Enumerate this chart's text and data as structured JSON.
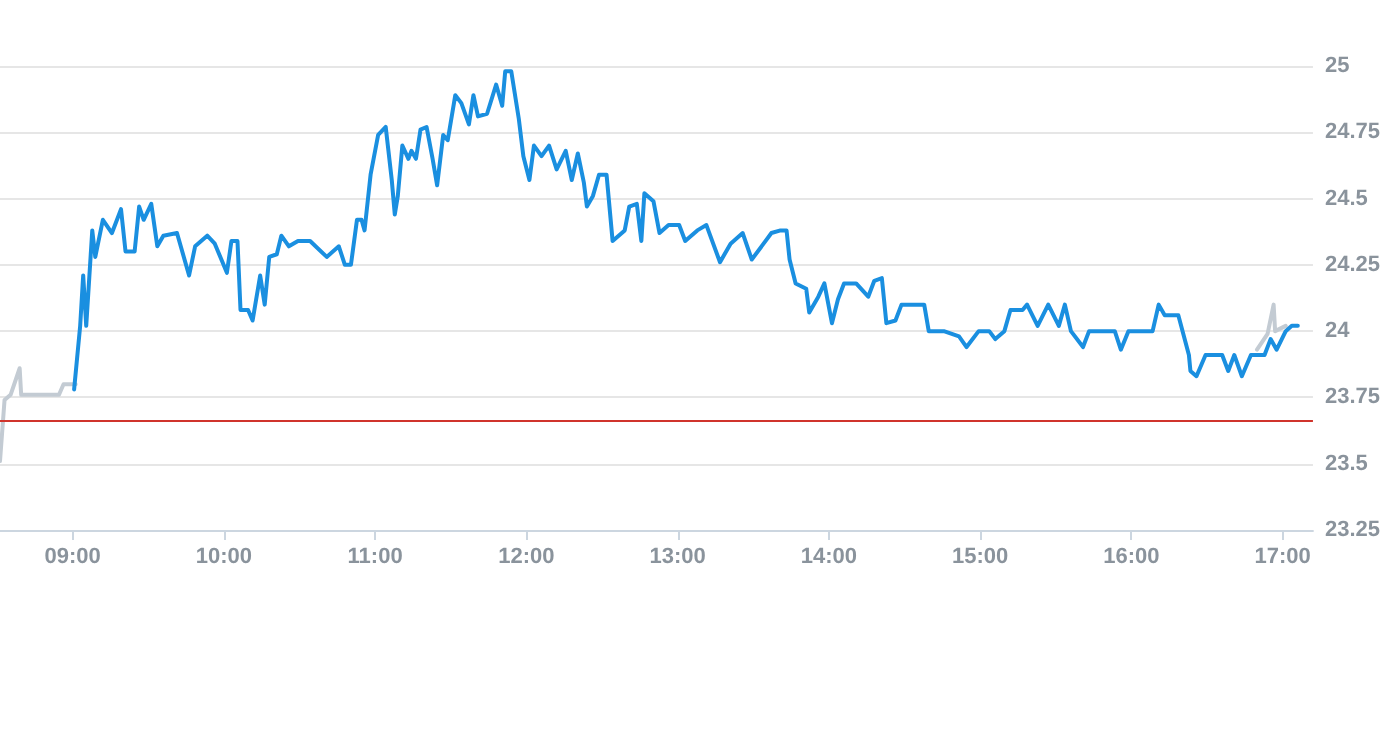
{
  "chart_data": {
    "type": "line",
    "xlim": [
      8.52,
      17.2
    ],
    "ylim": [
      23.25,
      25
    ],
    "xticks": [
      {
        "value": 9,
        "label": "09:00"
      },
      {
        "value": 10,
        "label": "10:00"
      },
      {
        "value": 11,
        "label": "11:00"
      },
      {
        "value": 12,
        "label": "12:00"
      },
      {
        "value": 13,
        "label": "13:00"
      },
      {
        "value": 14,
        "label": "14:00"
      },
      {
        "value": 15,
        "label": "15:00"
      },
      {
        "value": 16,
        "label": "16:00"
      },
      {
        "value": 17,
        "label": "17:00"
      }
    ],
    "yticks": [
      23.25,
      23.5,
      23.75,
      24,
      24.25,
      24.5,
      24.75,
      25
    ],
    "grid": "y",
    "marker": "none",
    "line_style": "solid",
    "ref_lines": [
      {
        "axis": "y",
        "value": 23.66,
        "color": "#d0342c"
      }
    ],
    "series": [
      {
        "color": "#c3cbd3",
        "x": [
          8.52,
          8.55,
          8.59,
          8.65,
          8.66,
          8.91,
          8.94,
          8.99,
          9.02
        ],
        "values": [
          23.51,
          23.74,
          23.76,
          23.86,
          23.76,
          23.76,
          23.8,
          23.8,
          23.8
        ]
      },
      {
        "color": "#c3cbd3",
        "x": [
          16.83,
          16.9,
          16.94,
          16.95,
          17.02
        ],
        "values": [
          23.93,
          23.99,
          24.1,
          24.0,
          24.02
        ]
      },
      {
        "color": "#1a8fe0",
        "x": [
          9.01,
          9.05,
          9.07,
          9.09,
          9.13,
          9.15,
          9.2,
          9.26,
          9.32,
          9.35,
          9.41,
          9.44,
          9.47,
          9.52,
          9.56,
          9.6,
          9.69,
          9.77,
          9.81,
          9.89,
          9.94,
          10.02,
          10.05,
          10.09,
          10.11,
          10.16,
          10.19,
          10.24,
          10.27,
          10.3,
          10.35,
          10.38,
          10.43,
          10.49,
          10.57,
          10.68,
          10.76,
          10.8,
          10.84,
          10.88,
          10.91,
          10.93,
          10.97,
          11.02,
          11.07,
          11.11,
          11.13,
          11.15,
          11.18,
          11.22,
          11.24,
          11.27,
          11.3,
          11.34,
          11.38,
          11.41,
          11.45,
          11.48,
          11.53,
          11.57,
          11.62,
          11.65,
          11.68,
          11.74,
          11.8,
          11.84,
          11.86,
          11.9,
          11.95,
          11.98,
          12.02,
          12.05,
          12.1,
          12.15,
          12.2,
          12.26,
          12.3,
          12.34,
          12.38,
          12.4,
          12.44,
          12.48,
          12.53,
          12.57,
          12.65,
          12.68,
          12.73,
          12.76,
          12.78,
          12.84,
          12.88,
          12.94,
          13.01,
          13.05,
          13.13,
          13.19,
          13.28,
          13.35,
          13.43,
          13.49,
          13.62,
          13.68,
          13.72,
          13.74,
          13.78,
          13.85,
          13.87,
          13.93,
          13.97,
          14.02,
          14.06,
          14.1,
          14.18,
          14.26,
          14.3,
          14.35,
          14.38,
          14.44,
          14.48,
          14.63,
          14.66,
          14.76,
          14.86,
          14.91,
          14.99,
          15.06,
          15.1,
          15.16,
          15.2,
          15.28,
          15.31,
          15.38,
          15.45,
          15.52,
          15.56,
          15.6,
          15.68,
          15.72,
          15.89,
          15.93,
          15.98,
          16.14,
          16.18,
          16.22,
          16.31,
          16.38,
          16.39,
          16.43,
          16.49,
          16.6,
          16.64,
          16.68,
          16.73,
          16.79,
          16.88,
          16.92,
          16.96,
          17.02,
          17.06,
          17.1
        ],
        "values": [
          23.78,
          24.02,
          24.21,
          24.02,
          24.38,
          24.28,
          24.42,
          24.37,
          24.46,
          24.3,
          24.3,
          24.47,
          24.42,
          24.48,
          24.32,
          24.36,
          24.37,
          24.21,
          24.32,
          24.36,
          24.33,
          24.22,
          24.34,
          24.34,
          24.08,
          24.08,
          24.04,
          24.21,
          24.1,
          24.28,
          24.29,
          24.36,
          24.32,
          24.34,
          24.34,
          24.28,
          24.32,
          24.25,
          24.25,
          24.42,
          24.42,
          24.38,
          24.59,
          24.74,
          24.77,
          24.57,
          24.44,
          24.51,
          24.7,
          24.65,
          24.68,
          24.65,
          24.76,
          24.77,
          24.65,
          24.55,
          24.74,
          24.72,
          24.89,
          24.86,
          24.78,
          24.89,
          24.81,
          24.82,
          24.93,
          24.85,
          24.98,
          24.98,
          24.8,
          24.66,
          24.57,
          24.7,
          24.66,
          24.7,
          24.61,
          24.68,
          24.57,
          24.67,
          24.56,
          24.47,
          24.51,
          24.59,
          24.59,
          24.34,
          24.38,
          24.47,
          24.48,
          24.34,
          24.52,
          24.49,
          24.37,
          24.4,
          24.4,
          24.34,
          24.38,
          24.4,
          24.26,
          24.33,
          24.37,
          24.27,
          24.37,
          24.38,
          24.38,
          24.27,
          24.18,
          24.16,
          24.07,
          24.13,
          24.18,
          24.03,
          24.12,
          24.18,
          24.18,
          24.13,
          24.19,
          24.2,
          24.03,
          24.04,
          24.1,
          24.1,
          24.0,
          24.0,
          23.98,
          23.94,
          24.0,
          24.0,
          23.97,
          24.0,
          24.08,
          24.08,
          24.1,
          24.02,
          24.1,
          24.02,
          24.1,
          24.0,
          23.94,
          24.0,
          24.0,
          23.93,
          24.0,
          24.0,
          24.1,
          24.06,
          24.06,
          23.91,
          23.85,
          23.83,
          23.91,
          23.91,
          23.85,
          23.91,
          23.83,
          23.91,
          23.91,
          23.97,
          23.93,
          24.0,
          24.02,
          24.02
        ]
      }
    ]
  }
}
